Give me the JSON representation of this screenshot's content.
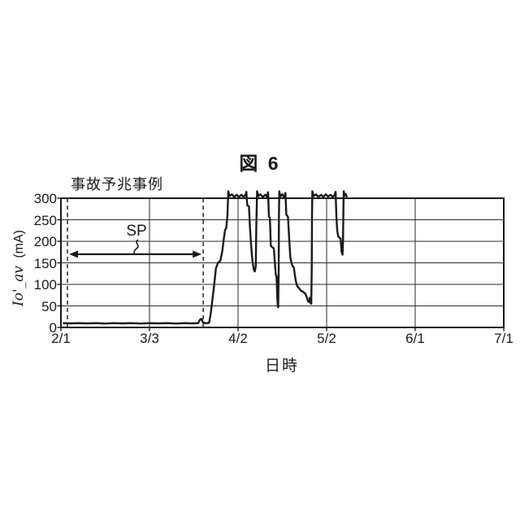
{
  "figure_title": "図 6",
  "colors": {
    "background": "#ffffff",
    "line": "#1a1a1a",
    "grid": "#2b2b2b",
    "border": "#1a1a1a",
    "text": "#1a1a1a"
  },
  "chart_data": {
    "type": "line",
    "title": "図 6",
    "grid": true,
    "legend": "none",
    "x_axis": {
      "label": "日時",
      "tick_labels": [
        "2/1",
        "3/3",
        "4/2",
        "5/2",
        "6/1",
        "7/1"
      ],
      "tick_days": [
        0,
        30,
        60,
        90,
        120,
        150
      ],
      "range_days": [
        0,
        150
      ]
    },
    "y_axis": {
      "label_name": "Io'_av",
      "label_unit": "(mA)",
      "tick_values": [
        0,
        50,
        100,
        150,
        200,
        250,
        300
      ],
      "tick_labels": [
        "0",
        "50",
        "100",
        "150",
        "200",
        "250",
        "300"
      ],
      "range": [
        0,
        300
      ]
    },
    "annotations": {
      "heading": "事故予兆事例",
      "dashed_marker_days": [
        2.2,
        48.2
      ],
      "sp": {
        "label": "SP",
        "from_day": 2.2,
        "to_day": 48.2,
        "at_mA": 170
      }
    },
    "series": [
      {
        "name": "Io'_av",
        "points_day_mA": [
          [
            0.9,
            10
          ],
          [
            3,
            9.5
          ],
          [
            6,
            10
          ],
          [
            9,
            9.5
          ],
          [
            12,
            10
          ],
          [
            15,
            9
          ],
          [
            18,
            10
          ],
          [
            21,
            9.5
          ],
          [
            24,
            10
          ],
          [
            27,
            9
          ],
          [
            30,
            10
          ],
          [
            33,
            9.5
          ],
          [
            36,
            10
          ],
          [
            39,
            9
          ],
          [
            42,
            10
          ],
          [
            44.5,
            9.5
          ],
          [
            46.5,
            10
          ],
          [
            47.1,
            18
          ],
          [
            47.6,
            20
          ],
          [
            48.1,
            12
          ],
          [
            48.8,
            10
          ],
          [
            49.6,
            10
          ],
          [
            50.2,
            11
          ],
          [
            50.7,
            30
          ],
          [
            51.2,
            58
          ],
          [
            51.8,
            92
          ],
          [
            52.5,
            138
          ],
          [
            53.2,
            150
          ],
          [
            54.0,
            155
          ],
          [
            54.6,
            175
          ],
          [
            55.1,
            202
          ],
          [
            55.6,
            226
          ],
          [
            56.0,
            231
          ],
          [
            56.4,
            260
          ],
          [
            56.7,
            316
          ],
          [
            57.1,
            305
          ],
          [
            57.9,
            309
          ],
          [
            58.7,
            303
          ],
          [
            59.5,
            308
          ],
          [
            60.3,
            303
          ],
          [
            61.1,
            308
          ],
          [
            61.9,
            303
          ],
          [
            62.5,
            307
          ],
          [
            62.8,
            315
          ],
          [
            63.1,
            284
          ],
          [
            63.7,
            281
          ],
          [
            64.0,
            238
          ],
          [
            64.4,
            192
          ],
          [
            64.9,
            152
          ],
          [
            65.4,
            133
          ],
          [
            65.7,
            130
          ],
          [
            66.0,
            142
          ],
          [
            66.2,
            240
          ],
          [
            66.45,
            316
          ],
          [
            66.9,
            305
          ],
          [
            67.6,
            309
          ],
          [
            68.4,
            303
          ],
          [
            69.2,
            308
          ],
          [
            69.8,
            304
          ],
          [
            70.15,
            314
          ],
          [
            70.45,
            258
          ],
          [
            70.8,
            254
          ],
          [
            71.1,
            190
          ],
          [
            71.6,
            186
          ],
          [
            72.1,
            184
          ],
          [
            72.5,
            148
          ],
          [
            72.8,
            122
          ],
          [
            73.05,
            118
          ],
          [
            73.25,
            78
          ],
          [
            73.45,
            50
          ],
          [
            73.6,
            47
          ],
          [
            73.75,
            130
          ],
          [
            73.85,
            255
          ],
          [
            73.95,
            316
          ],
          [
            74.35,
            304
          ],
          [
            74.95,
            309
          ],
          [
            75.55,
            303
          ],
          [
            76.05,
            312
          ],
          [
            76.35,
            262
          ],
          [
            76.9,
            257
          ],
          [
            77.3,
            208
          ],
          [
            77.7,
            163
          ],
          [
            78.1,
            149
          ],
          [
            78.5,
            142
          ],
          [
            78.9,
            139
          ],
          [
            79.3,
            119
          ],
          [
            79.6,
            107
          ],
          [
            80.0,
            96
          ],
          [
            80.7,
            91
          ],
          [
            81.3,
            85
          ],
          [
            82.0,
            83
          ],
          [
            82.7,
            79
          ],
          [
            83.2,
            72
          ],
          [
            83.7,
            61
          ],
          [
            84.05,
            59
          ],
          [
            84.3,
            69
          ],
          [
            84.6,
            57
          ],
          [
            84.8,
            55
          ],
          [
            84.95,
            140
          ],
          [
            85.05,
            255
          ],
          [
            85.15,
            316
          ],
          [
            85.6,
            305
          ],
          [
            86.4,
            309
          ],
          [
            87.2,
            303
          ],
          [
            88.1,
            308
          ],
          [
            88.9,
            303
          ],
          [
            89.7,
            309
          ],
          [
            90.5,
            304
          ],
          [
            91.3,
            308
          ],
          [
            92.1,
            303
          ],
          [
            92.75,
            308
          ],
          [
            93.05,
            315
          ],
          [
            93.3,
            258
          ],
          [
            93.6,
            224
          ],
          [
            93.95,
            211
          ],
          [
            94.4,
            208
          ],
          [
            94.75,
            206
          ],
          [
            95.05,
            177
          ],
          [
            95.25,
            171
          ],
          [
            95.4,
            169
          ],
          [
            95.55,
            203
          ],
          [
            95.7,
            280
          ],
          [
            95.8,
            316
          ],
          [
            96.1,
            306
          ],
          [
            96.5,
            310
          ],
          [
            96.8,
            304
          ]
        ]
      }
    ]
  }
}
